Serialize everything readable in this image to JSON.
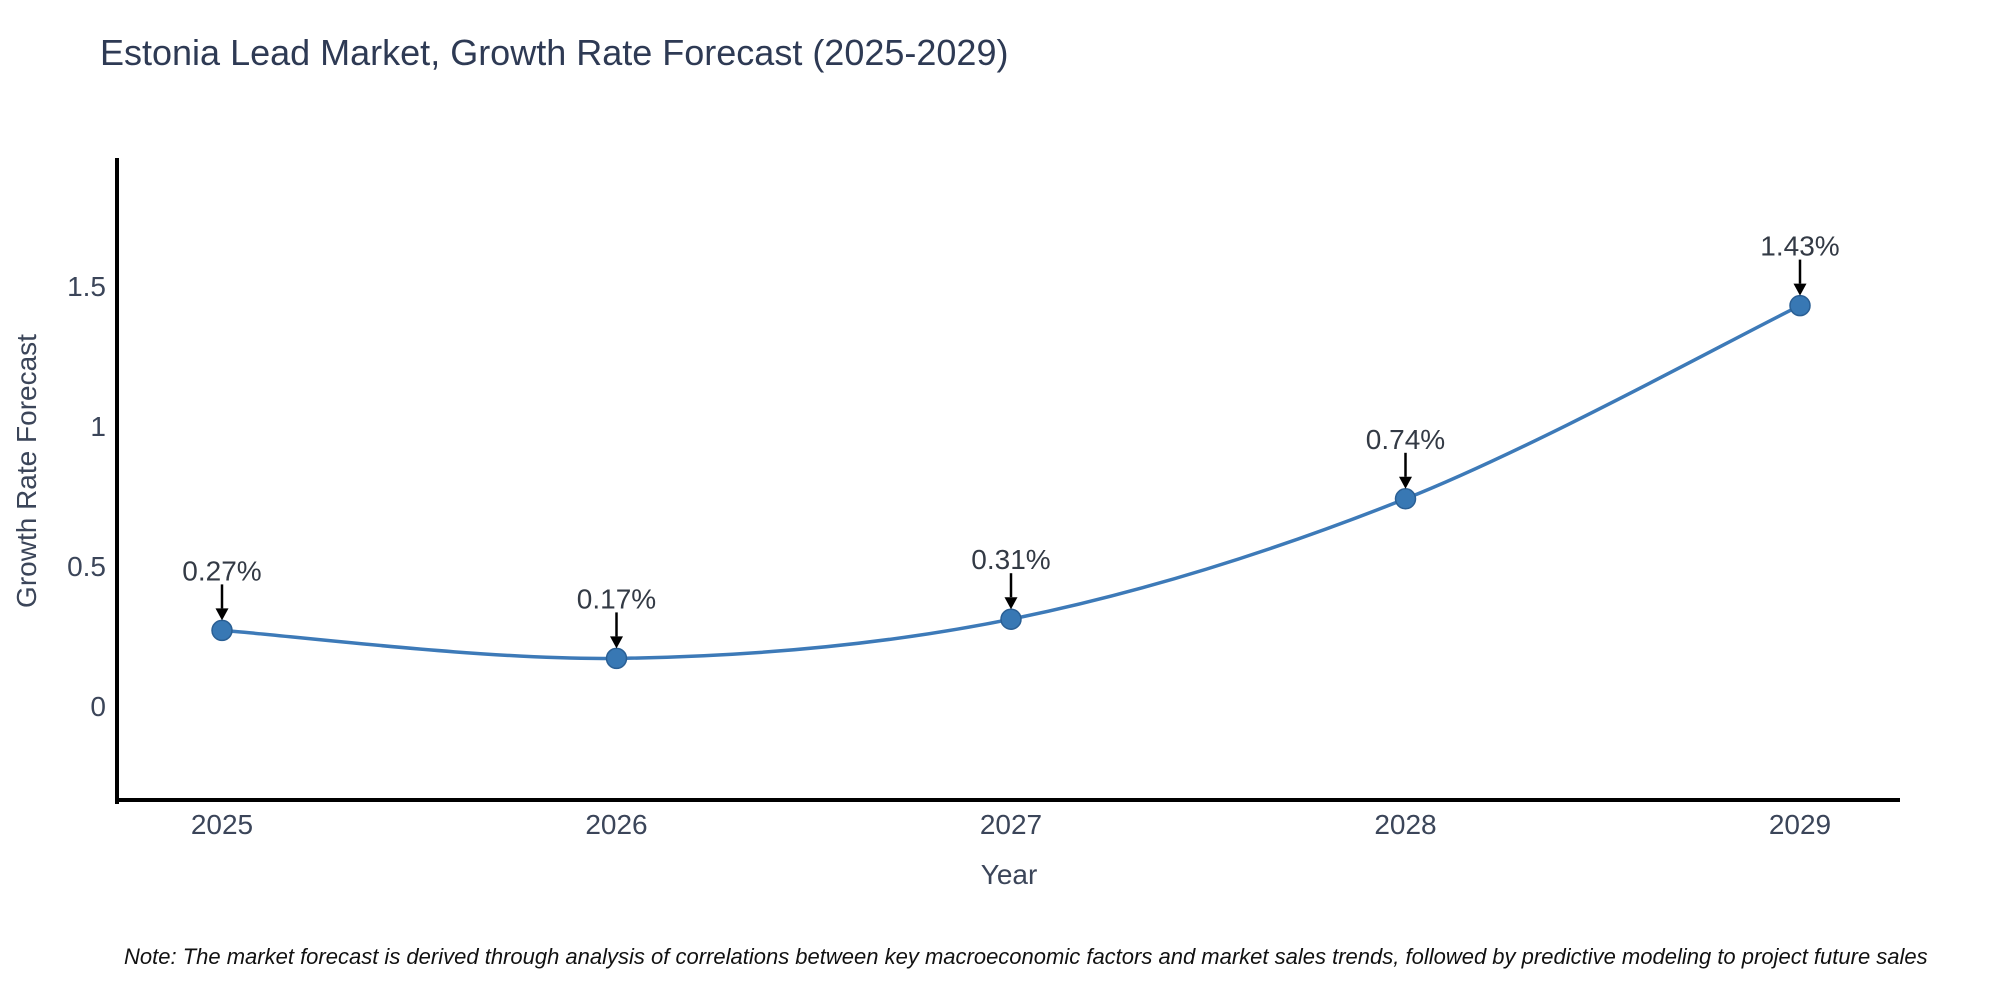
{
  "title": "Estonia Lead Market, Growth Rate Forecast (2025-2029)",
  "note": "Note: The market forecast is derived through analysis of correlations between key macroeconomic factors and market sales trends, followed by predictive modeling to project future sales",
  "chart_data": {
    "type": "line",
    "title": "Estonia Lead Market, Growth Rate Forecast (2025-2029)",
    "xlabel": "Year",
    "ylabel": "Growth Rate Forecast",
    "x": [
      2025,
      2026,
      2027,
      2028,
      2029
    ],
    "values": [
      0.27,
      0.17,
      0.31,
      0.74,
      1.43
    ],
    "point_labels": [
      "0.27%",
      "0.17%",
      "0.31%",
      "0.74%",
      "1.43%"
    ],
    "xtick_labels": [
      "2025",
      "2026",
      "2027",
      "2028",
      "2029"
    ],
    "yticks": [
      0,
      0.5,
      1,
      1.5
    ],
    "ytick_labels": [
      "0",
      "0.5",
      "1",
      "1.5"
    ],
    "xlim": [
      2024.73,
      2029.25
    ],
    "ylim": [
      -0.34,
      1.95
    ],
    "grid": false,
    "legend": "none",
    "smooth": true
  },
  "colors": {
    "line": "#3d7ab8",
    "marker_fill": "#3878b4",
    "marker_stroke": "#2a5f94",
    "axis_spine": "#000000",
    "tick_text": "#3b4559",
    "annotation_text": "#333a45",
    "annotation_arrow": "#000000",
    "title_text": "#2e3a54",
    "background": "#ffffff"
  }
}
